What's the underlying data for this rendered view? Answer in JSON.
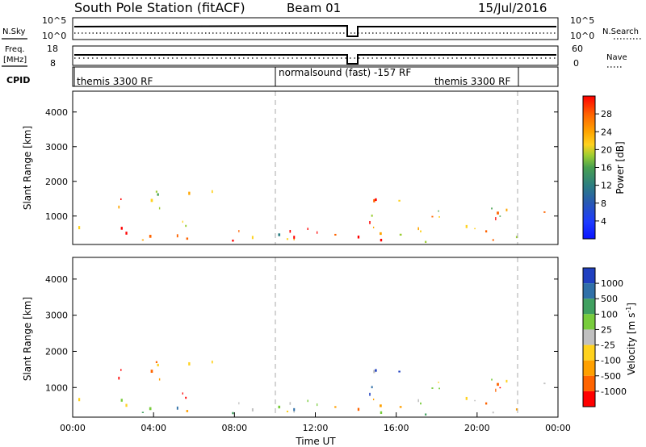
{
  "header": {
    "title": "South Pole Station (fitACF)",
    "beam": "Beam 01",
    "date": "15/Jul/2016"
  },
  "panels": {
    "nsky": {
      "label": "N.Sky",
      "ticks": [
        "10^5",
        "10^0"
      ]
    },
    "nsearch": {
      "label": "N.Search",
      "ticks": [
        "10^5",
        "10^0"
      ]
    },
    "freq": {
      "label_line1": "Freq.",
      "label_line2": "[MHz]",
      "ticks": [
        "18",
        "8"
      ]
    },
    "nave": {
      "label": "Nave",
      "ticks": [
        "60",
        "0"
      ]
    },
    "cpid": {
      "label": "CPID",
      "segments": [
        "themis 3300 RF",
        "normalsound (fast) -157 RF",
        "themis 3300 RF"
      ]
    }
  },
  "chart_data": [
    {
      "type": "heatmap",
      "name": "power",
      "ylabel": "Slant Range [km]",
      "yticks": [
        "1000",
        "2000",
        "3000",
        "4000"
      ],
      "ylim": [
        180,
        4600
      ],
      "xlim": [
        0,
        24
      ],
      "colorbar": {
        "label": "Power [dB]",
        "ticks": [
          "4",
          "8",
          "12",
          "16",
          "20",
          "24",
          "28"
        ],
        "range": [
          0,
          32
        ],
        "colors": [
          "#0a14ff",
          "#2858b4",
          "#2c7d82",
          "#48a050",
          "#9acd32",
          "#ffd21e",
          "#ffa500",
          "#ff6400",
          "#ff0000"
        ]
      }
    },
    {
      "type": "heatmap",
      "name": "velocity",
      "ylabel": "Slant Range [km]",
      "yticks": [
        "1000",
        "2000",
        "3000",
        "4000"
      ],
      "ylim": [
        180,
        4600
      ],
      "xlim": [
        0,
        24
      ],
      "xlabel": "Time UT",
      "xticks": [
        "00:00",
        "04:00",
        "08:00",
        "12:00",
        "16:00",
        "20:00",
        "00:00"
      ],
      "colorbar": {
        "label": "Velocity [m s",
        "label_sup": "-1",
        "label_end": "]",
        "ticks": [
          "1000",
          "500",
          "100",
          "25",
          "-25",
          "-100",
          "-500",
          "-1000"
        ],
        "colors": [
          "#2040c0",
          "#3070a8",
          "#40a060",
          "#78cc3c",
          "#c0c0c0",
          "#ffd21e",
          "#ffa000",
          "#ff6400",
          "#ff0000"
        ]
      }
    }
  ]
}
